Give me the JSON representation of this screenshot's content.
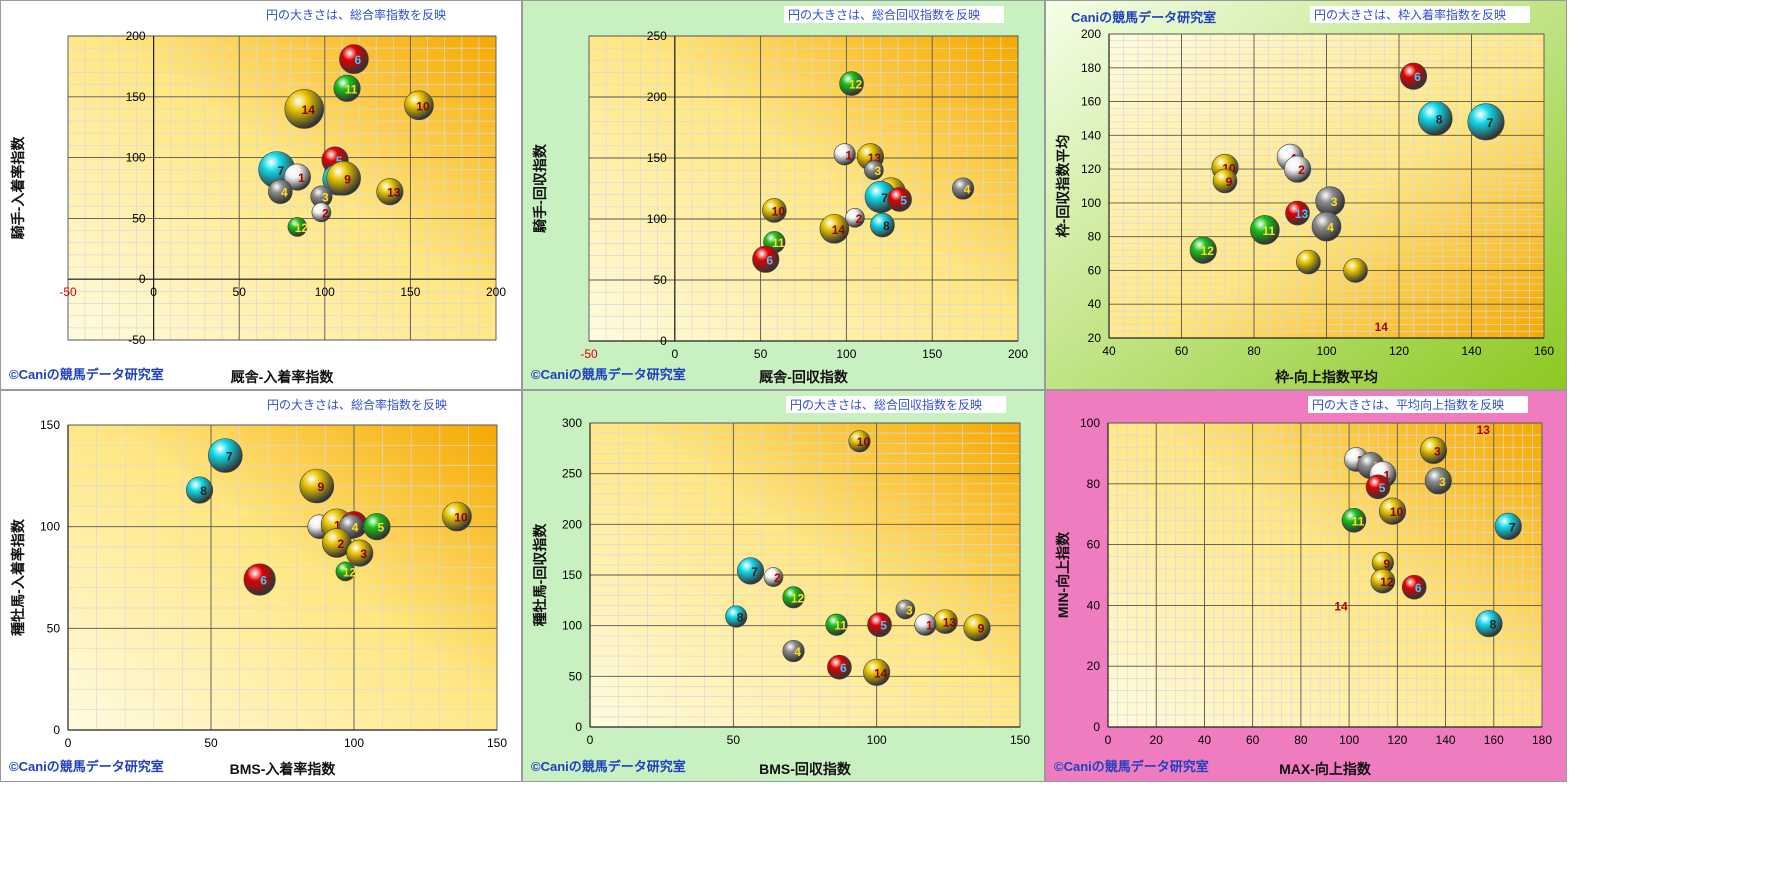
{
  "colors": {
    "red": "#e00000",
    "green": "#18c018",
    "yellow": "#e8c400",
    "white": "#f2f2f2",
    "gray": "#8c8c8c",
    "cyan": "#10d8e8",
    "orange_text": "#e0a000",
    "panel_bg_white": "#ffffff",
    "panel_bg_green": "#c8f0c0",
    "panel_bg_pink": "#f07cc0",
    "panel_bg_lime": "#a8d840",
    "copyright_text": "#2040c0",
    "note_text": "#3050d0"
  },
  "chart_data": [
    {
      "type": "scatter",
      "background": "white",
      "note": "円の大きさは、総合率指数を反映",
      "copyright": "©Caniの競馬データ研究室",
      "title": "",
      "xlabel": "厩舎-入着率指数",
      "ylabel": "騎手-入着率指数",
      "xlim": [
        -50,
        200
      ],
      "ylim": [
        -50,
        200
      ],
      "xticks": [
        -50,
        0,
        50,
        100,
        150,
        200
      ],
      "yticks": [
        -50,
        0,
        50,
        100,
        150,
        200
      ],
      "grid": true,
      "points": [
        {
          "label": "6",
          "x": 117,
          "y": 181,
          "size": 10,
          "color": "red"
        },
        {
          "label": "11",
          "x": 113,
          "y": 157,
          "size": 9,
          "color": "green"
        },
        {
          "label": "10",
          "x": 155,
          "y": 143,
          "size": 10,
          "color": "yellow"
        },
        {
          "label": "14",
          "x": 88,
          "y": 140,
          "size": 14,
          "color": "yellow"
        },
        {
          "label": "5",
          "x": 106,
          "y": 98,
          "size": 9,
          "color": "red"
        },
        {
          "label": "7",
          "x": 72,
          "y": 90,
          "size": 13,
          "color": "cyan"
        },
        {
          "label": "1",
          "x": 84,
          "y": 84,
          "size": 9,
          "color": "white"
        },
        {
          "label": "8",
          "x": 108,
          "y": 82,
          "size": 11,
          "color": "cyan"
        },
        {
          "label": "9",
          "x": 111,
          "y": 83,
          "size": 12,
          "color": "yellow"
        },
        {
          "label": "4",
          "x": 74,
          "y": 72,
          "size": 8,
          "color": "gray"
        },
        {
          "label": "13",
          "x": 138,
          "y": 72,
          "size": 9,
          "color": "yellow"
        },
        {
          "label": "3",
          "x": 98,
          "y": 68,
          "size": 7,
          "color": "gray"
        },
        {
          "label": "2",
          "x": 98,
          "y": 55,
          "size": 6,
          "color": "white"
        },
        {
          "label": "12",
          "x": 84,
          "y": 43,
          "size": 6,
          "color": "green"
        }
      ]
    },
    {
      "type": "scatter",
      "background": "green",
      "note": "円の大きさは、総合回収指数を反映",
      "copyright": "©Caniの競馬データ研究室",
      "title": "",
      "xlabel": "厩舎-回収指数",
      "ylabel": "騎手-回収指数",
      "xlim": [
        -50,
        200
      ],
      "ylim": [
        0,
        250
      ],
      "xticks": [
        -50,
        0,
        50,
        100,
        150,
        200
      ],
      "yticks": [
        0,
        50,
        100,
        150,
        200,
        250
      ],
      "grid": true,
      "points": [
        {
          "label": "12",
          "x": 103,
          "y": 211,
          "size": 8,
          "color": "green"
        },
        {
          "label": "1",
          "x": 99,
          "y": 153,
          "size": 7,
          "color": "white"
        },
        {
          "label": "13",
          "x": 114,
          "y": 151,
          "size": 9,
          "color": "yellow"
        },
        {
          "label": "3",
          "x": 116,
          "y": 140,
          "size": 6,
          "color": "gray"
        },
        {
          "label": "4",
          "x": 168,
          "y": 125,
          "size": 7,
          "color": "gray"
        },
        {
          "label": "9",
          "x": 126,
          "y": 122,
          "size": 10,
          "color": "yellow"
        },
        {
          "label": "7",
          "x": 120,
          "y": 118,
          "size": 11,
          "color": "cyan"
        },
        {
          "label": "5",
          "x": 131,
          "y": 116,
          "size": 8,
          "color": "red"
        },
        {
          "label": "10",
          "x": 58,
          "y": 107,
          "size": 8,
          "color": "yellow"
        },
        {
          "label": "2",
          "x": 105,
          "y": 101,
          "size": 6,
          "color": "white"
        },
        {
          "label": "8",
          "x": 121,
          "y": 95,
          "size": 8,
          "color": "cyan"
        },
        {
          "label": "14",
          "x": 93,
          "y": 92,
          "size": 10,
          "color": "yellow"
        },
        {
          "label": "11",
          "x": 58,
          "y": 81,
          "size": 7,
          "color": "green"
        },
        {
          "label": "6",
          "x": 53,
          "y": 67,
          "size": 9,
          "color": "red"
        }
      ]
    },
    {
      "type": "scatter",
      "background": "lime",
      "note": "円の大きさは、枠入着率指数を反映",
      "copyright": "Caniの競馬データ研究室",
      "copyright_position": "top-left",
      "title": "",
      "xlabel": "枠-向上指数平均",
      "ylabel": "枠-回収指数平均",
      "xlim": [
        40,
        160
      ],
      "ylim": [
        20,
        200
      ],
      "xticks": [
        40,
        60,
        80,
        100,
        120,
        140,
        160
      ],
      "yticks": [
        20,
        40,
        60,
        80,
        100,
        120,
        140,
        160,
        180,
        200
      ],
      "grid": true,
      "points": [
        {
          "label": "6",
          "x": 124,
          "y": 175,
          "size": 9,
          "color": "red"
        },
        {
          "label": "8",
          "x": 130,
          "y": 150,
          "size": 12,
          "color": "cyan"
        },
        {
          "label": "7",
          "x": 144,
          "y": 148,
          "size": 13,
          "color": "cyan"
        },
        {
          "label": "1",
          "x": 90,
          "y": 127,
          "size": 9,
          "color": "white"
        },
        {
          "label": "10",
          "x": 72,
          "y": 121,
          "size": 9,
          "color": "yellow"
        },
        {
          "label": "2",
          "x": 92,
          "y": 120,
          "size": 9,
          "color": "white"
        },
        {
          "label": "9",
          "x": 72,
          "y": 113,
          "size": 8,
          "color": "yellow"
        },
        {
          "label": "3",
          "x": 101,
          "y": 101,
          "size": 10,
          "color": "gray"
        },
        {
          "label": "13",
          "x": 92,
          "y": 94,
          "size": 8,
          "color": "red"
        },
        {
          "label": "4",
          "x": 100,
          "y": 86,
          "size": 10,
          "color": "gray"
        },
        {
          "label": "11",
          "x": 83,
          "y": 84,
          "size": 10,
          "color": "green"
        },
        {
          "label": "12",
          "x": 66,
          "y": 72,
          "size": 9,
          "color": "green"
        },
        {
          "label": "",
          "x": 95,
          "y": 65,
          "size": 8,
          "color": "yellow"
        },
        {
          "label": "",
          "x": 108,
          "y": 60,
          "size": 8,
          "color": "yellow"
        },
        {
          "label": "14",
          "x": 114,
          "y": 27,
          "size": 0,
          "color": "none"
        }
      ]
    },
    {
      "type": "scatter",
      "background": "white",
      "note": "円の大きさは、総合率指数を反映",
      "copyright": "©Caniの競馬データ研究室",
      "title": "",
      "xlabel": "BMS-入着率指数",
      "ylabel": "種牡馬-入着率指数",
      "xlim": [
        0,
        150
      ],
      "ylim": [
        0,
        150
      ],
      "xticks": [
        0,
        50,
        100,
        150
      ],
      "yticks": [
        0,
        50,
        100,
        150
      ],
      "grid": true,
      "points": [
        {
          "label": "7",
          "x": 55,
          "y": 135,
          "size": 12,
          "color": "cyan"
        },
        {
          "label": "9",
          "x": 87,
          "y": 120,
          "size": 12,
          "color": "yellow"
        },
        {
          "label": "8",
          "x": 46,
          "y": 118,
          "size": 9,
          "color": "cyan"
        },
        {
          "label": "10",
          "x": 136,
          "y": 105,
          "size": 10,
          "color": "yellow"
        },
        {
          "label": "1",
          "x": 88,
          "y": 100,
          "size": 8,
          "color": "white"
        },
        {
          "label": "14",
          "x": 94,
          "y": 101,
          "size": 11,
          "color": "yellow"
        },
        {
          "label": "11",
          "x": 100,
          "y": 101,
          "size": 9,
          "color": "red"
        },
        {
          "label": "4",
          "x": 99,
          "y": 100,
          "size": 8,
          "color": "gray"
        },
        {
          "label": "5",
          "x": 108,
          "y": 100,
          "size": 9,
          "color": "green"
        },
        {
          "label": "2",
          "x": 94,
          "y": 92,
          "size": 10,
          "color": "yellow"
        },
        {
          "label": "3",
          "x": 102,
          "y": 87,
          "size": 9,
          "color": "yellow"
        },
        {
          "label": "12",
          "x": 97,
          "y": 78,
          "size": 6,
          "color": "green"
        },
        {
          "label": "6",
          "x": 67,
          "y": 74,
          "size": 11,
          "color": "red"
        }
      ]
    },
    {
      "type": "scatter",
      "background": "green",
      "note": "円の大きさは、総合回収指数を反映",
      "copyright": "©Caniの競馬データ研究室",
      "title": "",
      "xlabel": "BMS-回収指数",
      "ylabel": "種牡馬-回収指数",
      "xlim": [
        0,
        150
      ],
      "ylim": [
        0,
        300
      ],
      "xticks": [
        0,
        50,
        100,
        150
      ],
      "yticks": [
        0,
        50,
        100,
        150,
        200,
        250,
        300
      ],
      "grid": true,
      "points": [
        {
          "label": "10",
          "x": 94,
          "y": 282,
          "size": 7,
          "color": "yellow"
        },
        {
          "label": "7",
          "x": 56,
          "y": 154,
          "size": 9,
          "color": "cyan"
        },
        {
          "label": "2",
          "x": 64,
          "y": 148,
          "size": 6,
          "color": "white"
        },
        {
          "label": "12",
          "x": 71,
          "y": 128,
          "size": 7,
          "color": "green"
        },
        {
          "label": "3",
          "x": 110,
          "y": 116,
          "size": 6,
          "color": "gray"
        },
        {
          "label": "8",
          "x": 51,
          "y": 109,
          "size": 7,
          "color": "cyan"
        },
        {
          "label": "13",
          "x": 124,
          "y": 104,
          "size": 8,
          "color": "yellow"
        },
        {
          "label": "11",
          "x": 86,
          "y": 101,
          "size": 7,
          "color": "green"
        },
        {
          "label": "5",
          "x": 101,
          "y": 101,
          "size": 8,
          "color": "red"
        },
        {
          "label": "1",
          "x": 117,
          "y": 101,
          "size": 7,
          "color": "white"
        },
        {
          "label": "9",
          "x": 135,
          "y": 98,
          "size": 9,
          "color": "yellow"
        },
        {
          "label": "4",
          "x": 71,
          "y": 75,
          "size": 7,
          "color": "gray"
        },
        {
          "label": "6",
          "x": 87,
          "y": 59,
          "size": 8,
          "color": "red"
        },
        {
          "label": "14",
          "x": 100,
          "y": 54,
          "size": 9,
          "color": "yellow"
        }
      ]
    },
    {
      "type": "scatter",
      "background": "pink",
      "note": "円の大きさは、平均向上指数を反映",
      "copyright": "©Caniの競馬データ研究室",
      "title": "",
      "xlabel": "MAX-向上指数",
      "ylabel": "MIN-向上指数",
      "xlim": [
        0,
        180
      ],
      "ylim": [
        0,
        100
      ],
      "xticks": [
        0,
        20,
        40,
        60,
        80,
        100,
        120,
        140,
        160,
        180
      ],
      "yticks": [
        0,
        20,
        40,
        60,
        80,
        100
      ],
      "grid": true,
      "points": [
        {
          "label": "13",
          "x": 154,
          "y": 98,
          "size": 0,
          "color": "none"
        },
        {
          "label": "3",
          "x": 135,
          "y": 91,
          "size": 9,
          "color": "yellow"
        },
        {
          "label": "2",
          "x": 103,
          "y": 88,
          "size": 8,
          "color": "white"
        },
        {
          "label": "4",
          "x": 109,
          "y": 86,
          "size": 9,
          "color": "gray"
        },
        {
          "label": "1",
          "x": 114,
          "y": 83,
          "size": 9,
          "color": "white"
        },
        {
          "label": "3",
          "x": 137,
          "y": 81,
          "size": 9,
          "color": "gray"
        },
        {
          "label": "5",
          "x": 112,
          "y": 79,
          "size": 8,
          "color": "red"
        },
        {
          "label": "10",
          "x": 118,
          "y": 71,
          "size": 9,
          "color": "yellow"
        },
        {
          "label": "11",
          "x": 102,
          "y": 68,
          "size": 8,
          "color": "green"
        },
        {
          "label": "7",
          "x": 166,
          "y": 66,
          "size": 9,
          "color": "cyan"
        },
        {
          "label": "9",
          "x": 114,
          "y": 54,
          "size": 7,
          "color": "yellow"
        },
        {
          "label": "12",
          "x": 114,
          "y": 48,
          "size": 8,
          "color": "yellow"
        },
        {
          "label": "6",
          "x": 127,
          "y": 46,
          "size": 8,
          "color": "red"
        },
        {
          "label": "14",
          "x": 95,
          "y": 40,
          "size": 0,
          "color": "none"
        },
        {
          "label": "8",
          "x": 158,
          "y": 34,
          "size": 9,
          "color": "cyan"
        }
      ]
    }
  ]
}
